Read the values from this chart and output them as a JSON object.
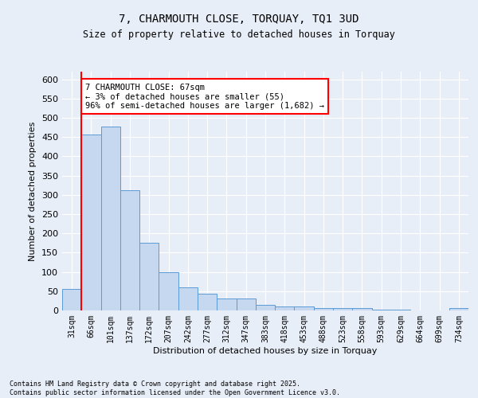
{
  "title1": "7, CHARMOUTH CLOSE, TORQUAY, TQ1 3UD",
  "title2": "Size of property relative to detached houses in Torquay",
  "xlabel": "Distribution of detached houses by size in Torquay",
  "ylabel": "Number of detached properties",
  "bin_labels": [
    "31sqm",
    "66sqm",
    "101sqm",
    "137sqm",
    "172sqm",
    "207sqm",
    "242sqm",
    "277sqm",
    "312sqm",
    "347sqm",
    "383sqm",
    "418sqm",
    "453sqm",
    "488sqm",
    "523sqm",
    "558sqm",
    "593sqm",
    "629sqm",
    "664sqm",
    "699sqm",
    "734sqm"
  ],
  "bin_values": [
    55,
    456,
    478,
    312,
    175,
    100,
    60,
    43,
    30,
    32,
    14,
    10,
    10,
    7,
    7,
    7,
    2,
    2,
    1,
    0,
    6
  ],
  "bar_color": "#c5d8f0",
  "bar_edge_color": "#5b9bd5",
  "vline_x_index": 1,
  "vline_color": "#ff0000",
  "annotation_text": "7 CHARMOUTH CLOSE: 67sqm\n← 3% of detached houses are smaller (55)\n96% of semi-detached houses are larger (1,682) →",
  "annotation_box_color": "#ffffff",
  "annotation_box_edge": "#ff0000",
  "ylim": [
    0,
    620
  ],
  "yticks": [
    0,
    50,
    100,
    150,
    200,
    250,
    300,
    350,
    400,
    450,
    500,
    550,
    600
  ],
  "footer_text": "Contains HM Land Registry data © Crown copyright and database right 2025.\nContains public sector information licensed under the Open Government Licence v3.0.",
  "bg_color": "#e8eef8",
  "grid_color": "#ffffff"
}
